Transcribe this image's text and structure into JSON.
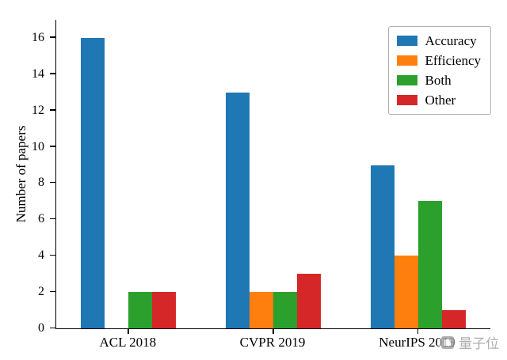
{
  "figure": {
    "background": "#ffffff"
  },
  "watermark": {
    "text": "量子位",
    "color": "#9a9a9a"
  },
  "chart_data": {
    "type": "bar",
    "title": "",
    "xlabel": "",
    "ylabel": "Number of papers",
    "categories": [
      "ACL 2018",
      "CVPR 2019",
      "NeurIPS 2019"
    ],
    "series": [
      {
        "name": "Accuracy",
        "color": "#1f77b4",
        "values": [
          16,
          13,
          9
        ]
      },
      {
        "name": "Efficiency",
        "color": "#ff7f0e",
        "values": [
          0,
          2,
          4
        ]
      },
      {
        "name": "Both",
        "color": "#2ca02c",
        "values": [
          2,
          2,
          7
        ]
      },
      {
        "name": "Other",
        "color": "#d62728",
        "values": [
          2,
          3,
          1
        ]
      }
    ],
    "ylim": [
      0,
      16
    ],
    "yticks": [
      0,
      2,
      4,
      6,
      8,
      10,
      12,
      14,
      16
    ],
    "grid": false,
    "legend_position": "upper right"
  }
}
